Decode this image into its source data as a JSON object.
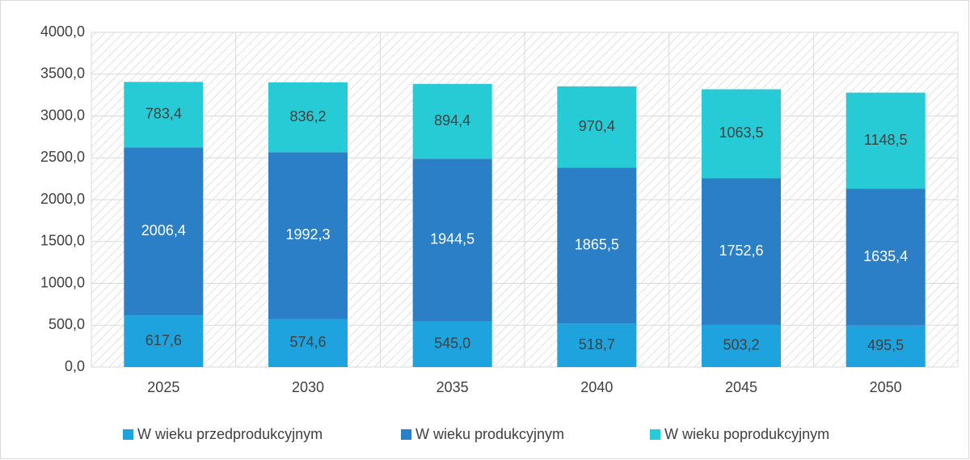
{
  "chart_data": {
    "type": "stacked_bar",
    "categories": [
      "2025",
      "2030",
      "2035",
      "2040",
      "2045",
      "2050"
    ],
    "series": [
      {
        "name": "W wieku przedprodukcyjnym",
        "color": "#1fa3df",
        "values": [
          617.6,
          574.6,
          545.0,
          518.7,
          503.2,
          495.5
        ],
        "value_labels": [
          "617,6",
          "574,6",
          "545,0",
          "518,7",
          "503,2",
          "495,5"
        ]
      },
      {
        "name": "W wieku produkcyjnym",
        "color": "#2a7fc7",
        "values": [
          2006.4,
          1992.3,
          1944.5,
          1865.5,
          1752.6,
          1635.4
        ],
        "value_labels": [
          "2006,4",
          "1992,3",
          "1944,5",
          "1865,5",
          "1752,6",
          "1635,4"
        ]
      },
      {
        "name": "W wieku poprodukcyjnym",
        "color": "#27cbd6",
        "values": [
          783.4,
          836.2,
          894.4,
          970.4,
          1063.5,
          1148.5
        ],
        "value_labels": [
          "783,4",
          "836,2",
          "894,4",
          "970,4",
          "1063,5",
          "1148,5"
        ]
      }
    ],
    "ylim": [
      0,
      4000
    ],
    "yticks": [
      {
        "value": 0,
        "label": "0,0"
      },
      {
        "value": 500,
        "label": "500,0"
      },
      {
        "value": 1000,
        "label": "1000,0"
      },
      {
        "value": 1500,
        "label": "1500,0"
      },
      {
        "value": 2000,
        "label": "2000,0"
      },
      {
        "value": 2500,
        "label": "2500,0"
      },
      {
        "value": 3000,
        "label": "3000,0"
      },
      {
        "value": 3500,
        "label": "3500,0"
      },
      {
        "value": 4000,
        "label": "4000,0"
      }
    ],
    "grid": true,
    "legend": "bottom"
  }
}
